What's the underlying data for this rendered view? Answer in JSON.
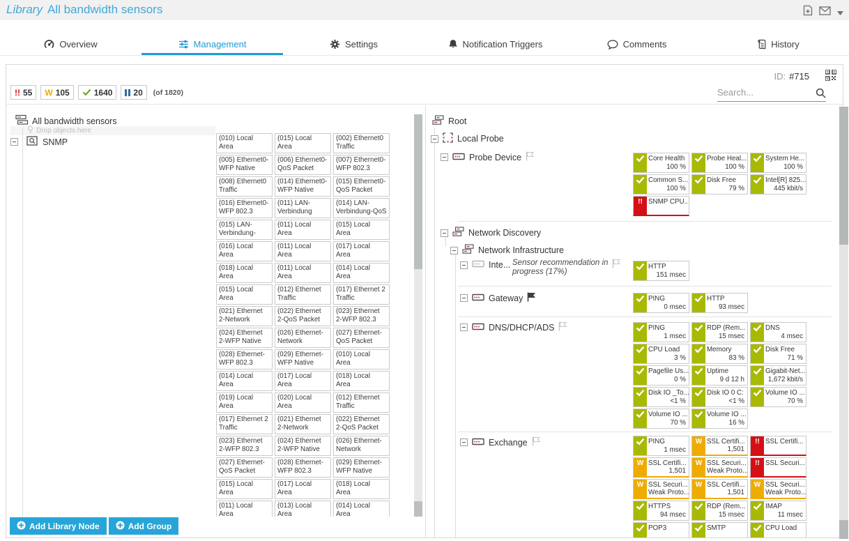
{
  "colors": {
    "title": "#3fa9dc",
    "accent": "#1d9bd4",
    "up": "#a8b902",
    "warn": "#efac00",
    "down": "#d40f16",
    "button": "#27a5d8"
  },
  "header": {
    "title_prefix": "Library",
    "title": "All bandwidth sensors"
  },
  "tabs": [
    {
      "label": "Overview",
      "icon": "gauge",
      "active": false
    },
    {
      "label": "Management",
      "icon": "sliders",
      "active": true
    },
    {
      "label": "Settings",
      "icon": "gear",
      "active": false
    },
    {
      "label": "Notification Triggers",
      "icon": "bell",
      "active": false
    },
    {
      "label": "Comments",
      "icon": "comment",
      "active": false
    },
    {
      "label": "History",
      "icon": "history",
      "active": false
    }
  ],
  "toolbar": {
    "id_label": "ID:",
    "id_value": "#715",
    "counts": [
      {
        "type": "down",
        "count": "55"
      },
      {
        "type": "warning",
        "count": "105"
      },
      {
        "type": "up",
        "count": "1640"
      },
      {
        "type": "paused",
        "count": "20"
      }
    ],
    "of_label": "(of 1820)",
    "search_placeholder": "Search..."
  },
  "library_tree": {
    "root_label": "All bandwidth sensors",
    "drop_hint": "Drop objects here",
    "node_label": "SNMP"
  },
  "library_grid": {
    "tiles": [
      "(010) Local\nArea",
      "(015) Local\nArea",
      "(002) Ethernet0\nTraffic",
      "(005) Ethernet0-\nWFP Native",
      "(006) Ethernet0-\nQoS Packet",
      "(007) Ethernet0-\nWFP 802.3",
      "(008) Ethernet0\nTraffic",
      "(014) Ethernet0-\nWFP Native",
      "(015) Ethernet0-\nQoS Packet",
      "(016) Ethernet0-\nWFP 802.3",
      "(011) LAN-\nVerbindung",
      "(014) LAN-\nVerbindung-QoS",
      "(015) LAN-\nVerbindung-",
      "(011) Local\nArea",
      "(015) Local\nArea",
      "(016) Local\nArea",
      "(011) Local\nArea",
      "(017) Local\nArea",
      "(018) Local\nArea",
      "(011) Local\nArea",
      "(014) Local\nArea",
      "(015) Local\nArea",
      "(012) Ethernet\nTraffic",
      "(017) Ethernet 2\nTraffic",
      "(021) Ethernet\n2-Network",
      "(022) Ethernet\n2-QoS Packet",
      "(023) Ethernet\n2-WFP 802.3",
      "(024) Ethernet\n2-WFP Native",
      "(026) Ethernet-\nNetwork",
      "(027) Ethernet-\nQoS Packet",
      "(028) Ethernet-\nWFP 802.3",
      "(029) Ethernet-\nWFP Native",
      "(010) Local\nArea",
      "(014) Local\nArea",
      "(017) Local\nArea",
      "(018) Local\nArea",
      "(019) Local\nArea",
      "(020) Local\nArea",
      "(012) Ethernet\nTraffic",
      "(017) Ethernet 2\nTraffic",
      "(021) Ethernet\n2-Network",
      "(022) Ethernet\n2-QoS Packet",
      "(023) Ethernet\n2-WFP 802.3",
      "(024) Ethernet\n2-WFP Native",
      "(026) Ethernet-\nNetwork",
      "(027) Ethernet-\nQoS Packet",
      "(028) Ethernet-\nWFP 802.3",
      "(029) Ethernet-\nWFP Native",
      "(015) Local\nArea",
      "(017) Local\nArea",
      "(018) Local\nArea",
      "(011) Local\nArea",
      "(013) Local\nArea",
      "(014) Local\nArea"
    ]
  },
  "device_tree": {
    "root_label": "Root",
    "local_probe_label": "Local Probe",
    "sections": [
      {
        "label": "Probe Device",
        "sensors": [
          {
            "name": "Core Health",
            "value": "100 %",
            "status": "up"
          },
          {
            "name": "Probe Heal...",
            "value": "100 %",
            "status": "up"
          },
          {
            "name": "System He...",
            "value": "100 %",
            "status": "up"
          },
          {
            "name": "Common S...",
            "value": "100 %",
            "status": "up"
          },
          {
            "name": "Disk Free",
            "value": "79 %",
            "status": "up"
          },
          {
            "name": "Intel[R] 825...",
            "value": "445 kbit/s",
            "status": "up"
          },
          {
            "name": "SNMP CPU...",
            "value": "",
            "status": "down"
          }
        ]
      },
      {
        "label": "Network Discovery",
        "sensors": []
      },
      {
        "label": "Network Infrastructure",
        "sensors": []
      },
      {
        "label": "Inte...",
        "note_line1": "Sensor recommendation in",
        "note_line2": "progress (17%)",
        "sensors": [
          {
            "name": "HTTP",
            "value": "151 msec",
            "status": "up"
          }
        ]
      },
      {
        "label": "Gateway",
        "sensors": [
          {
            "name": "PING",
            "value": "0 msec",
            "status": "up"
          },
          {
            "name": "HTTP",
            "value": "93 msec",
            "status": "up"
          }
        ]
      },
      {
        "label": "DNS/DHCP/ADS",
        "sensors": [
          {
            "name": "PING",
            "value": "1 msec",
            "status": "up"
          },
          {
            "name": "RDP (Rem...",
            "value": "15 msec",
            "status": "up"
          },
          {
            "name": "DNS",
            "value": "4 msec",
            "status": "up"
          },
          {
            "name": "CPU Load",
            "value": "3 %",
            "status": "up"
          },
          {
            "name": "Memory",
            "value": "83 %",
            "status": "up"
          },
          {
            "name": "Disk Free",
            "value": "71 %",
            "status": "up"
          },
          {
            "name": "Pagefile Us...",
            "value": "0 %",
            "status": "up"
          },
          {
            "name": "Uptime",
            "value": "9 d 12 h",
            "status": "up"
          },
          {
            "name": "Gigabit-Net...",
            "value": "1,672 kbit/s",
            "status": "up"
          },
          {
            "name": "Disk IO _To...",
            "value": "<1 %",
            "status": "up"
          },
          {
            "name": "Disk IO 0 C:",
            "value": "<1 %",
            "status": "up"
          },
          {
            "name": "Volume IO ...",
            "value": "70 %",
            "status": "up"
          },
          {
            "name": "Volume IO ...",
            "value": "70 %",
            "status": "up"
          },
          {
            "name": "Volume IO ...",
            "value": "16 %",
            "status": "up"
          }
        ]
      },
      {
        "label": "Exchange",
        "sensors": [
          {
            "name": "PING",
            "value": "1 msec",
            "status": "up"
          },
          {
            "name": "SSL Certifi...",
            "value": "1,501",
            "status": "warning"
          },
          {
            "name": "SSL Certifi...",
            "value": "",
            "status": "down"
          },
          {
            "name": "SSL Certifi...",
            "value": "1,501",
            "status": "warning"
          },
          {
            "name": "SSL Securi...",
            "msg": "Weak Proto...",
            "status": "warning"
          },
          {
            "name": "SSL Securi...",
            "value": "",
            "status": "down"
          },
          {
            "name": "SSL Securi...",
            "msg": "Weak Proto...",
            "status": "warning"
          },
          {
            "name": "SSL Certifi...",
            "value": "1,501",
            "status": "warning"
          },
          {
            "name": "SSL Securi...",
            "msg": "Weak Proto...",
            "status": "warning"
          },
          {
            "name": "HTTPS",
            "value": "94 msec",
            "status": "up"
          },
          {
            "name": "RDP (Rem...",
            "value": "15 msec",
            "status": "up"
          },
          {
            "name": "IMAP",
            "value": "11 msec",
            "status": "up"
          },
          {
            "name": "POP3",
            "value": "",
            "status": "up"
          },
          {
            "name": "SMTP",
            "value": "",
            "status": "up"
          },
          {
            "name": "CPU Load",
            "value": "",
            "status": "up"
          }
        ]
      }
    ]
  },
  "buttons": [
    {
      "label": "Add Library Node"
    },
    {
      "label": "Add Group"
    }
  ]
}
